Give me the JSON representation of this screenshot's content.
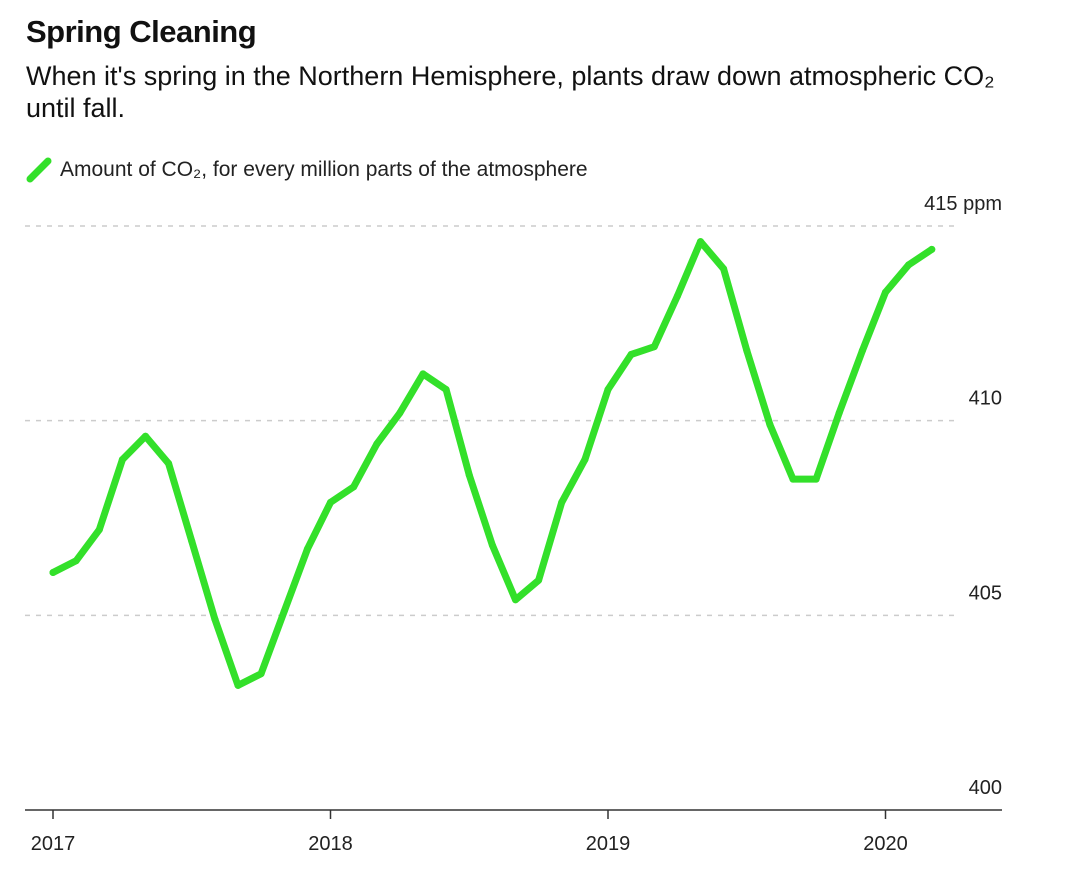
{
  "title": "Spring Cleaning",
  "subtitle": "When it's spring in the Northern Hemisphere, plants draw down atmospheric CO₂ until fall.",
  "legend_label": "Amount of CO₂, for every million parts of the atmosphere",
  "colors": {
    "line": "#33e02a",
    "grid": "#cccccc",
    "axis": "#333333"
  },
  "chart_data": {
    "type": "line",
    "title": "Spring Cleaning",
    "subtitle": "When it's spring in the Northern Hemisphere, plants draw down atmospheric CO₂ until fall.",
    "xlabel": "",
    "ylabel": "",
    "y_unit": "ppm",
    "ylim": [
      400,
      415
    ],
    "xlim": [
      "2017-01",
      "2020-04"
    ],
    "y_ticks": [
      {
        "value": 415,
        "label": "415 ppm"
      },
      {
        "value": 410,
        "label": "410"
      },
      {
        "value": 405,
        "label": "405"
      },
      {
        "value": 400,
        "label": "400"
      }
    ],
    "x_ticks": [
      "2017",
      "2018",
      "2019",
      "2020"
    ],
    "grid": "horizontal dashed",
    "legend_position": "top-left",
    "series": [
      {
        "name": "Amount of CO₂, for every million parts of the atmosphere",
        "x": [
          "2017-01",
          "2017-02",
          "2017-03",
          "2017-04",
          "2017-05",
          "2017-06",
          "2017-07",
          "2017-08",
          "2017-09",
          "2017-10",
          "2017-11",
          "2017-12",
          "2018-01",
          "2018-02",
          "2018-03",
          "2018-04",
          "2018-05",
          "2018-06",
          "2018-07",
          "2018-08",
          "2018-09",
          "2018-10",
          "2018-11",
          "2018-12",
          "2019-01",
          "2019-02",
          "2019-03",
          "2019-04",
          "2019-05",
          "2019-06",
          "2019-07",
          "2019-08",
          "2019-09",
          "2019-10",
          "2019-11",
          "2019-12",
          "2020-01",
          "2020-02",
          "2020-03"
        ],
        "values": [
          406.1,
          406.4,
          407.2,
          409.0,
          409.6,
          408.9,
          406.9,
          404.9,
          403.2,
          403.5,
          405.1,
          406.7,
          407.9,
          408.3,
          409.4,
          410.2,
          411.2,
          410.8,
          408.6,
          406.8,
          405.4,
          405.9,
          407.9,
          409.0,
          410.8,
          411.7,
          411.9,
          413.2,
          414.6,
          413.9,
          411.8,
          409.9,
          408.5,
          408.5,
          410.2,
          411.8,
          413.3,
          414.0,
          414.4
        ]
      }
    ]
  }
}
